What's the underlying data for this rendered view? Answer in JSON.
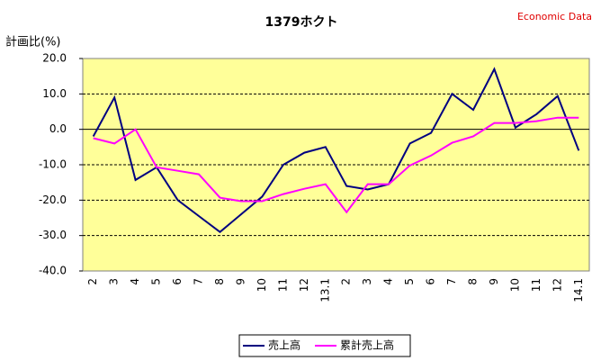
{
  "chart_data": {
    "type": "line",
    "title": "1379ホクト",
    "source": "Economic Data",
    "y_label": "計画比(%)",
    "categories": [
      "2",
      "3",
      "4",
      "5",
      "6",
      "7",
      "8",
      "9",
      "10",
      "11",
      "12",
      "13.1",
      "2",
      "3",
      "4",
      "5",
      "6",
      "7",
      "8",
      "9",
      "10",
      "11",
      "12",
      "14.1"
    ],
    "series": [
      {
        "name": "売上高",
        "color": "#000080",
        "values": [
          -2,
          9,
          -14.3,
          -10.7,
          -20,
          -24.5,
          -29,
          -24,
          -19,
          -10,
          -6.6,
          -5,
          -16,
          -17,
          -15.5,
          -4,
          -1,
          10,
          5.5,
          17,
          0.5,
          4.3,
          9.4,
          -6
        ]
      },
      {
        "name": "累計売上高",
        "color": "#ff00ff",
        "values": [
          -2.5,
          -4,
          0,
          -10.7,
          -11.7,
          -12.7,
          -19.3,
          -20.3,
          -20.3,
          -18.3,
          -16.8,
          -15.5,
          -23.4,
          -15.5,
          -15.5,
          -10.2,
          -7.4,
          -3.8,
          -2,
          1.8,
          1.8,
          2.3,
          3.3,
          3.3
        ]
      }
    ],
    "ylim": [
      -40,
      20
    ],
    "yticks": [
      {
        "value": 20,
        "label": "20.0"
      },
      {
        "value": 10,
        "label": "10.0"
      },
      {
        "value": 0,
        "label": "0.0"
      },
      {
        "value": -10,
        "label": "-10.0"
      },
      {
        "value": -20,
        "label": "-20.0"
      },
      {
        "value": -30,
        "label": "-30.0"
      },
      {
        "value": -40,
        "label": "-40.0"
      }
    ],
    "grid": true,
    "legend": "bottom"
  }
}
